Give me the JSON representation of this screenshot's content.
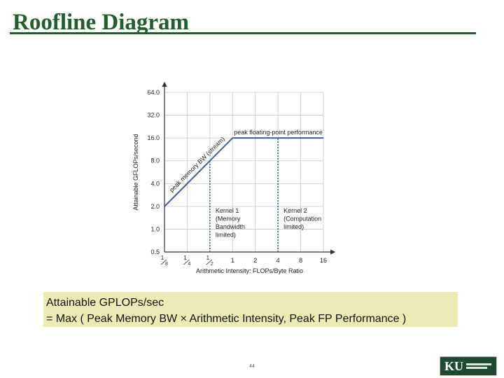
{
  "slide": {
    "title": "Roofline Diagram",
    "page_number": "44"
  },
  "formula": {
    "line1": "Attainable GPLOPs/sec",
    "line2": "= Max ( Peak Memory BW × Arithmetic Intensity, Peak FP Performance )"
  },
  "logo": {
    "text": "KU"
  },
  "colors": {
    "title": "#1f5f2a",
    "formula_background": "#ecebb6",
    "roofline": "#3a5f9e",
    "kernel_lines": "#3a5f9e",
    "grid": "#c8c8c8"
  },
  "chart_data": {
    "type": "line",
    "xscale": "log2",
    "yscale": "log2",
    "xlabel": "Arithmetic Intensity: FLOPs/Byte Ratio",
    "ylabel": "Attainable GFLOPs/second",
    "xlim": [
      0.125,
      16
    ],
    "ylim": [
      0.5,
      64
    ],
    "x_ticks": [
      {
        "value": 0.125,
        "num": "1",
        "den": "8"
      },
      {
        "value": 0.25,
        "num": "1",
        "den": "4"
      },
      {
        "value": 0.5,
        "num": "1",
        "den": "2"
      },
      {
        "value": 1,
        "label": "1"
      },
      {
        "value": 2,
        "label": "2"
      },
      {
        "value": 4,
        "label": "4"
      },
      {
        "value": 8,
        "label": "8"
      },
      {
        "value": 16,
        "label": "16"
      }
    ],
    "y_ticks": [
      {
        "value": 0.5,
        "label": "0.5"
      },
      {
        "value": 1,
        "label": "1.0"
      },
      {
        "value": 2,
        "label": "2.0"
      },
      {
        "value": 4,
        "label": "4.0"
      },
      {
        "value": 8,
        "label": "8.0"
      },
      {
        "value": 16,
        "label": "16.0"
      },
      {
        "value": 32,
        "label": "32.0"
      },
      {
        "value": 64,
        "label": "64.0"
      }
    ],
    "grid": true,
    "series": [
      {
        "name": "roofline",
        "points": [
          [
            0.125,
            2
          ],
          [
            1,
            16
          ],
          [
            16,
            16
          ]
        ]
      }
    ],
    "kernels": [
      {
        "x": 0.5,
        "lines": [
          "Kernel 1",
          "(Memory",
          "Bandwidth",
          "limited)"
        ]
      },
      {
        "x": 4,
        "lines": [
          "Kernel 2",
          "(Computation",
          "limited)"
        ]
      }
    ],
    "annotations": {
      "memory_roof": "peak memory BW (stream)",
      "compute_roof": "peak floating-point performance"
    }
  }
}
